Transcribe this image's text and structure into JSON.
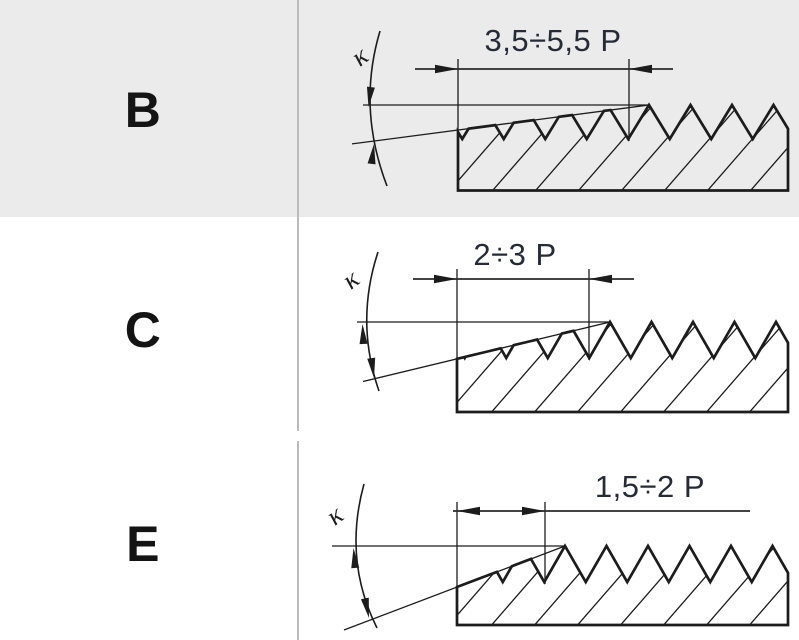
{
  "table": {
    "column_divider_color": "#bcbcbc",
    "rows": [
      {
        "id": "B",
        "label": "B",
        "row_background": "#ebebeb",
        "chamfer_length_label": "3,5÷5,5 P",
        "chamfer_length_pitches_min": 3.5,
        "chamfer_length_pitches_max": 5.5,
        "chamfer_angle_label": "κ"
      },
      {
        "id": "C",
        "label": "C",
        "row_background": "#ffffff",
        "chamfer_length_label": "2÷3 P",
        "chamfer_length_pitches_min": 2,
        "chamfer_length_pitches_max": 3,
        "chamfer_angle_label": "κ"
      },
      {
        "id": "E",
        "label": "E",
        "row_background": "#ffffff",
        "chamfer_length_label": "1,5÷2 P",
        "chamfer_length_pitches_min": 1.5,
        "chamfer_length_pitches_max": 2,
        "chamfer_angle_label": "κ"
      }
    ],
    "colors": {
      "line": "#1c1c1c",
      "dimension_text": "#262b36",
      "row_label_text": "#141414"
    }
  }
}
